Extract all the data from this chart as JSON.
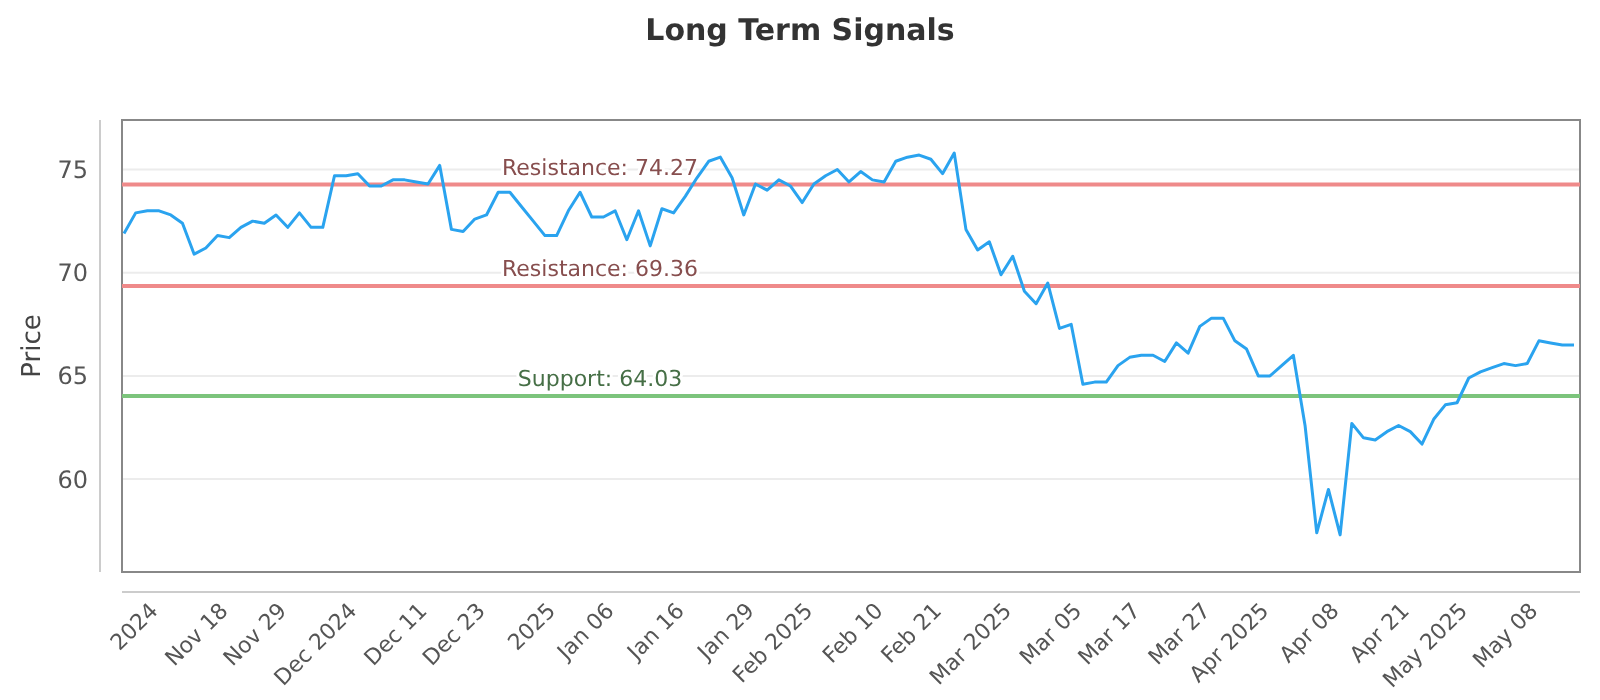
{
  "chart_data": {
    "type": "line",
    "title": "Long Term Signals",
    "ylabel": "Price",
    "categories": [
      null,
      null,
      null,
      "2024",
      null,
      null,
      null,
      null,
      null,
      "Nov 18",
      null,
      null,
      null,
      null,
      "Nov 29",
      null,
      null,
      null,
      null,
      null,
      "Dec 2024",
      null,
      null,
      null,
      null,
      null,
      "Dec 11",
      null,
      null,
      null,
      null,
      "Dec 23",
      null,
      null,
      null,
      null,
      null,
      "2025",
      null,
      null,
      null,
      null,
      "Jan 06",
      null,
      null,
      null,
      null,
      null,
      "Jan 16",
      null,
      null,
      null,
      null,
      null,
      "Jan 29",
      null,
      null,
      null,
      null,
      "Feb 2025",
      null,
      null,
      null,
      null,
      null,
      "Feb 10",
      null,
      null,
      null,
      null,
      "Feb 21",
      null,
      null,
      null,
      null,
      null,
      "Mar 2025",
      null,
      null,
      null,
      null,
      null,
      "Mar 05",
      null,
      null,
      null,
      null,
      "Mar 17",
      null,
      null,
      null,
      null,
      null,
      "Mar 27",
      null,
      null,
      null,
      null,
      "Apr 2025",
      null,
      null,
      null,
      null,
      null,
      "Apr 08",
      null,
      null,
      null,
      null,
      null,
      "Apr 21",
      null,
      null,
      null,
      null,
      "May 2025",
      null,
      null,
      null,
      null,
      null,
      "May 08",
      null,
      null,
      null
    ],
    "series": [
      {
        "color": "#2aa3ef",
        "values": [
          71.9,
          72.9,
          73.0,
          73.0,
          72.8,
          72.4,
          70.9,
          71.2,
          71.8,
          71.7,
          72.2,
          72.5,
          72.4,
          72.8,
          72.2,
          72.9,
          72.2,
          72.2,
          74.7,
          74.7,
          74.8,
          74.2,
          74.2,
          74.5,
          74.5,
          74.4,
          74.3,
          75.2,
          72.1,
          72.0,
          72.6,
          72.8,
          73.9,
          73.9,
          73.2,
          72.5,
          71.8,
          71.8,
          73.0,
          73.9,
          72.7,
          72.7,
          73.0,
          71.6,
          73.0,
          71.3,
          73.1,
          72.9,
          73.7,
          74.6,
          75.4,
          75.6,
          74.6,
          72.8,
          74.3,
          74.0,
          74.5,
          74.2,
          73.4,
          74.3,
          74.7,
          75.0,
          74.4,
          74.9,
          74.5,
          74.4,
          75.4,
          75.6,
          75.7,
          75.5,
          74.8,
          75.8,
          72.1,
          71.1,
          71.5,
          69.9,
          70.8,
          69.1,
          68.5,
          69.5,
          67.3,
          67.5,
          64.6,
          64.7,
          64.7,
          65.5,
          65.9,
          66.0,
          66.0,
          65.7,
          66.6,
          66.1,
          67.4,
          67.8,
          67.8,
          66.7,
          66.3,
          65.0,
          65.0,
          65.5,
          66.0,
          62.6,
          57.4,
          59.5,
          57.3,
          62.7,
          62.0,
          61.9,
          62.3,
          62.6,
          62.3,
          61.7,
          62.9,
          63.6,
          63.7,
          64.9,
          65.2,
          65.4,
          65.6,
          65.5,
          65.6,
          66.7,
          66.6,
          66.5,
          66.5
        ]
      }
    ],
    "ylim": [
      55.5,
      77.4
    ],
    "yticks": [
      60,
      65,
      70,
      75
    ],
    "grid": "y",
    "ref_lines": [
      {
        "axis": "y",
        "value": 74.27,
        "label": "Resistance: 74.27",
        "color": "#ef8a8a"
      },
      {
        "axis": "y",
        "value": 69.36,
        "label": "Resistance: 69.36",
        "color": "#ef8a8a"
      },
      {
        "axis": "y",
        "value": 64.03,
        "label": "Support: 64.03",
        "color": "#7cc47c"
      }
    ]
  }
}
